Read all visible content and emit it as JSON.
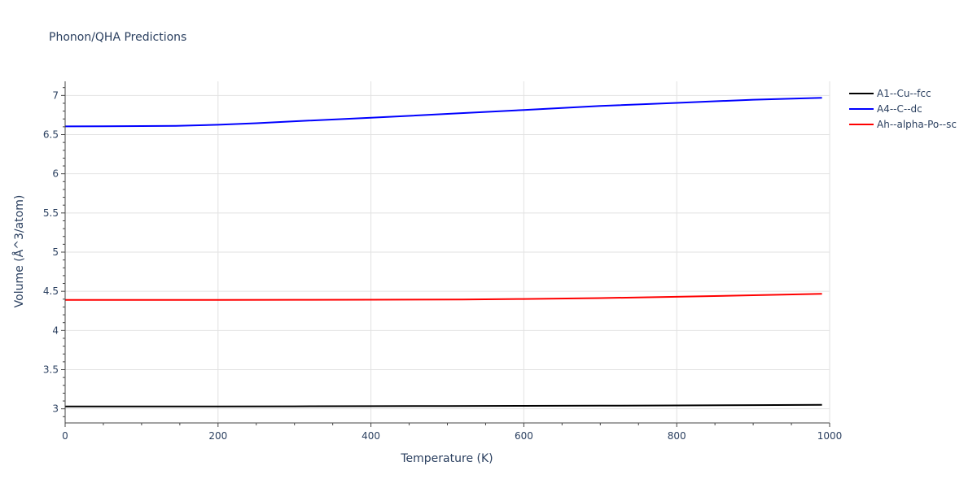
{
  "chart_data": {
    "type": "line",
    "title": "Phonon/QHA Predictions",
    "xlabel": "Temperature (K)",
    "ylabel": "Volume (Å^3/atom)",
    "xlim": [
      0,
      1000
    ],
    "ylim": [
      2.82,
      7.18
    ],
    "x_ticks": [
      0,
      200,
      400,
      600,
      800,
      1000
    ],
    "x_tick_labels": [
      "0",
      "200",
      "400",
      "600",
      "800",
      "1000"
    ],
    "y_ticks": [
      3,
      3.5,
      4,
      4.5,
      5,
      5.5,
      6,
      6.5,
      7
    ],
    "y_tick_labels": [
      "3",
      "3.5",
      "4",
      "4.5",
      "5",
      "5.5",
      "6",
      "6.5",
      "7"
    ],
    "grid": true,
    "legend_position": "top-right",
    "series": [
      {
        "name": "A1--Cu--fcc",
        "color": "#000000",
        "x": [
          0,
          100,
          200,
          300,
          400,
          500,
          600,
          700,
          800,
          900,
          990
        ],
        "y": [
          3.03,
          3.03,
          3.031,
          3.032,
          3.034,
          3.036,
          3.038,
          3.04,
          3.043,
          3.047,
          3.052
        ]
      },
      {
        "name": "A4--C--dc",
        "color": "#0000ff",
        "x": [
          0,
          50,
          100,
          145,
          200,
          250,
          300,
          400,
          500,
          600,
          700,
          800,
          900,
          990
        ],
        "y": [
          6.605,
          6.607,
          6.609,
          6.612,
          6.626,
          6.645,
          6.67,
          6.715,
          6.765,
          6.815,
          6.865,
          6.905,
          6.945,
          6.97
        ]
      },
      {
        "name": "Ah--alpha-Po--sc",
        "color": "#ff0000",
        "x": [
          0,
          100,
          200,
          300,
          400,
          520,
          600,
          700,
          800,
          900,
          990
        ],
        "y": [
          4.39,
          4.39,
          4.391,
          4.392,
          4.393,
          4.395,
          4.402,
          4.413,
          4.43,
          4.45,
          4.468
        ]
      }
    ]
  }
}
